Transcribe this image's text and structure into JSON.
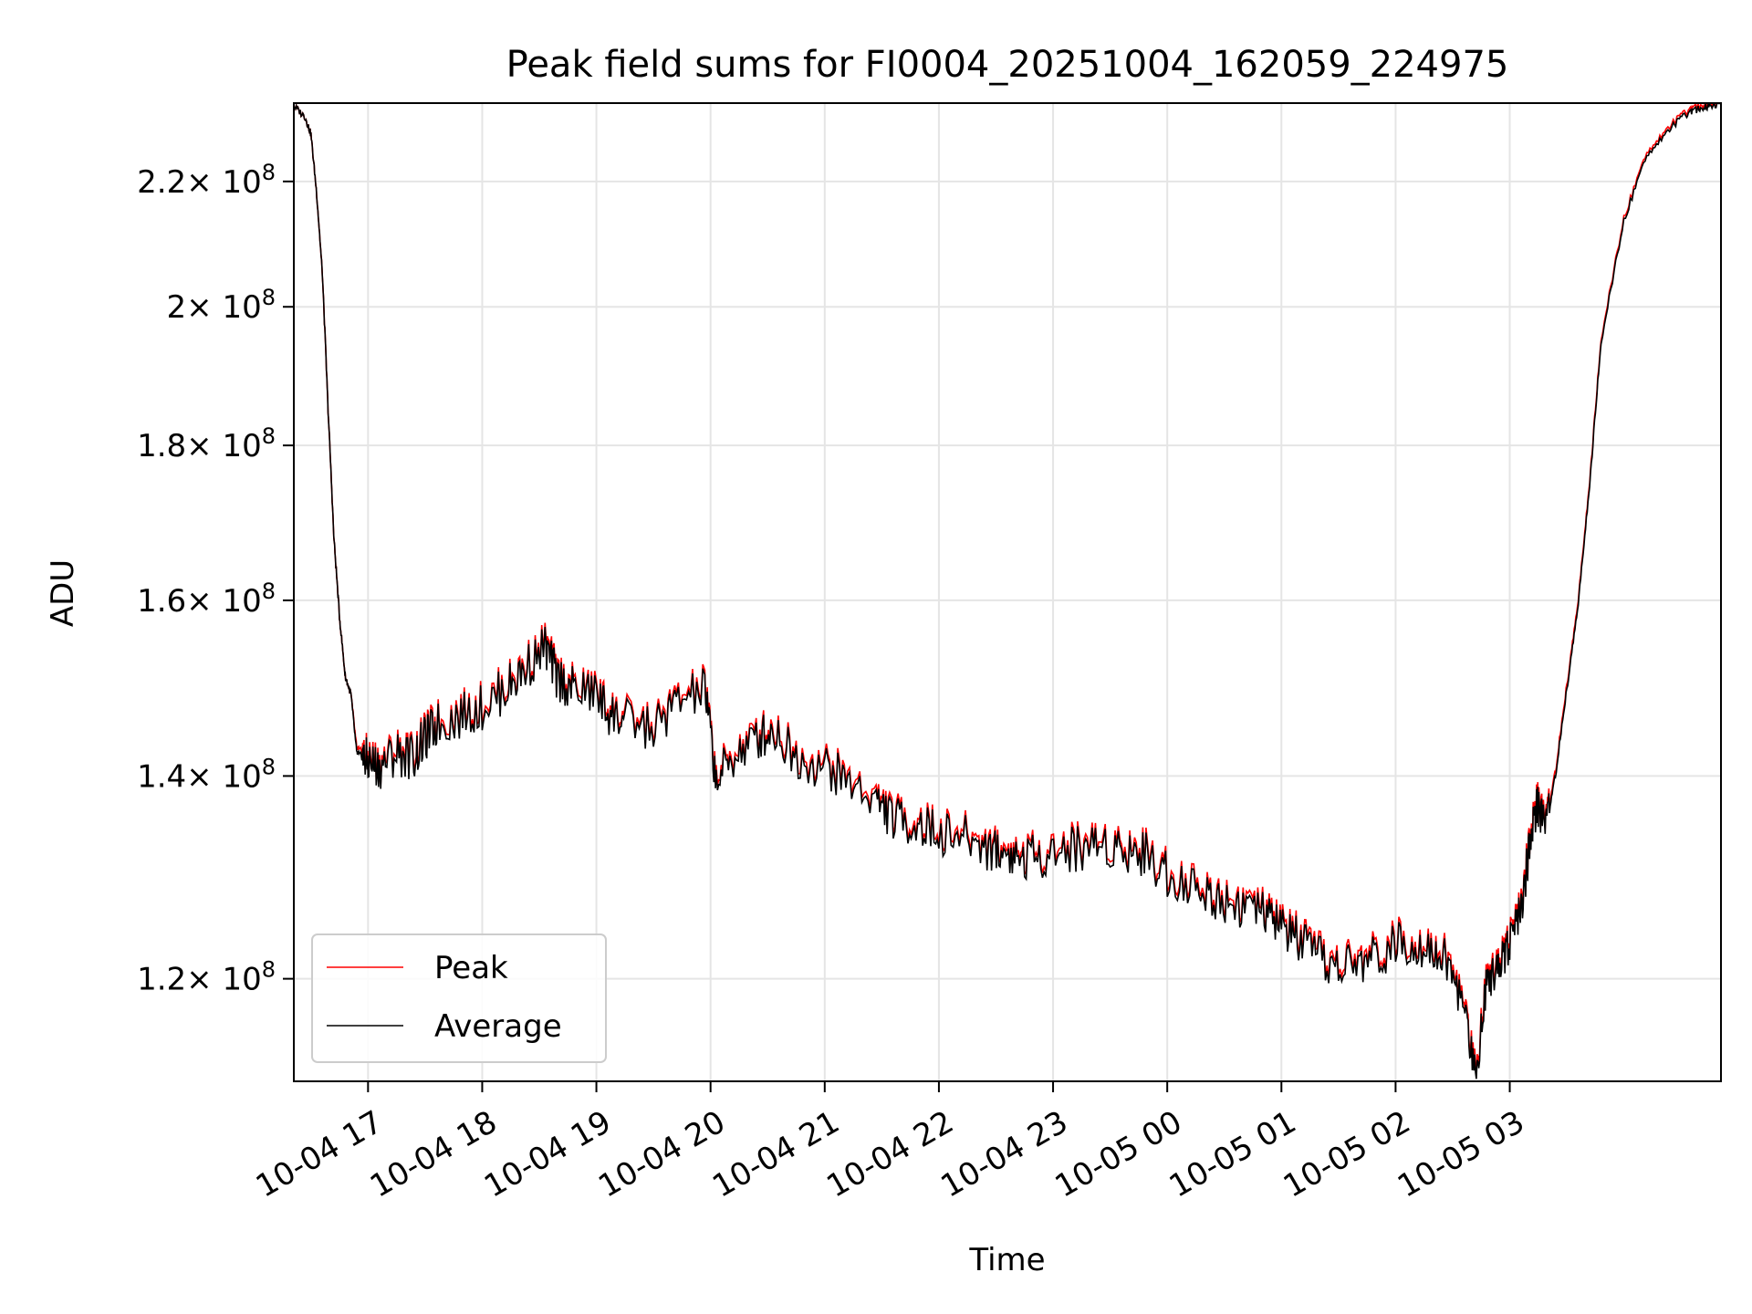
{
  "chart_data": {
    "type": "line",
    "title": "Peak field sums for FI0004_20251004_162059_224975",
    "xlabel": "Time",
    "ylabel": "ADU",
    "y_scale": "log",
    "ylim": [
      111000000,
      233500000
    ],
    "xlim_hours": [
      16.35,
      28.85
    ],
    "x_ticks": [
      {
        "value": 17,
        "label": "10-04 17"
      },
      {
        "value": 18,
        "label": "10-04 18"
      },
      {
        "value": 19,
        "label": "10-04 19"
      },
      {
        "value": 20,
        "label": "10-04 20"
      },
      {
        "value": 21,
        "label": "10-04 21"
      },
      {
        "value": 22,
        "label": "10-04 22"
      },
      {
        "value": 23,
        "label": "10-04 23"
      },
      {
        "value": 24,
        "label": "10-05 00"
      },
      {
        "value": 25,
        "label": "10-05 01"
      },
      {
        "value": 26,
        "label": "10-05 02"
      },
      {
        "value": 27,
        "label": "10-05 03"
      }
    ],
    "y_ticks": [
      {
        "value": 120000000,
        "mantissa": "1.2",
        "exponent": "8"
      },
      {
        "value": 140000000,
        "mantissa": "1.4",
        "exponent": "8"
      },
      {
        "value": 160000000,
        "mantissa": "1.6",
        "exponent": "8"
      },
      {
        "value": 180000000,
        "mantissa": "1.8",
        "exponent": "8"
      },
      {
        "value": 200000000,
        "mantissa": "2",
        "exponent": "8"
      },
      {
        "value": 220000000,
        "mantissa": "2.2",
        "exponent": "8"
      }
    ],
    "tick_times": "× 10",
    "grid": true,
    "legend_position": "lower-left",
    "series": [
      {
        "name": "Peak",
        "color": "#ff0000",
        "x_hours": [
          16.35,
          16.45,
          16.5,
          16.55,
          16.6,
          16.65,
          16.7,
          16.75,
          16.8,
          16.85,
          16.9,
          16.95,
          17.0,
          17.1,
          17.25,
          17.4,
          17.5,
          17.6,
          17.8,
          18.0,
          18.2,
          18.35,
          18.55,
          18.65,
          18.8,
          19.0,
          19.1,
          19.25,
          19.5,
          19.7,
          19.95,
          20.05,
          20.2,
          20.4,
          20.55,
          20.75,
          21.0,
          21.2,
          21.45,
          21.6,
          21.8,
          22.0,
          22.25,
          22.45,
          22.6,
          22.75,
          22.95,
          23.2,
          23.4,
          23.6,
          23.8,
          24.0,
          24.25,
          24.45,
          24.65,
          24.85,
          25.0,
          25.15,
          25.3,
          25.5,
          25.7,
          25.9,
          26.1,
          26.3,
          26.45,
          26.6,
          26.7,
          26.8,
          26.9,
          27.0,
          27.1,
          27.18,
          27.25,
          27.32,
          27.4,
          27.5,
          27.6,
          27.7,
          27.8,
          28.0,
          28.2,
          28.4,
          28.55,
          28.65,
          28.75,
          28.85
        ],
        "values": [
          233000000,
          231000000,
          228000000,
          218000000,
          205000000,
          185000000,
          168000000,
          158000000,
          151000000,
          149000000,
          143000000,
          142500000,
          142000000,
          141500000,
          143000000,
          142500000,
          144500000,
          146000000,
          147000000,
          148000000,
          150000000,
          152000000,
          155000000,
          151500000,
          150000000,
          149500000,
          147500000,
          146500000,
          145500000,
          148500000,
          150000000,
          140000000,
          142500000,
          144500000,
          145500000,
          142500000,
          141500000,
          140000000,
          138000000,
          136000000,
          135500000,
          134500000,
          134000000,
          133000000,
          132500000,
          132000000,
          132500000,
          133000000,
          133500000,
          133000000,
          132500000,
          130500000,
          129000000,
          128000000,
          127500000,
          126500000,
          125500000,
          124000000,
          122500000,
          121500000,
          122000000,
          123000000,
          124000000,
          123500000,
          122000000,
          118000000,
          112000000,
          120500000,
          122000000,
          124000000,
          126500000,
          134000000,
          137500000,
          135500000,
          140500000,
          150000000,
          160000000,
          175000000,
          195000000,
          214000000,
          225000000,
          229500000,
          232000000,
          233000000,
          233500000,
          233500000
        ]
      },
      {
        "name": "Average",
        "color": "#000000",
        "x_hours": [
          16.35,
          16.45,
          16.5,
          16.55,
          16.6,
          16.65,
          16.7,
          16.75,
          16.8,
          16.85,
          16.9,
          16.95,
          17.0,
          17.1,
          17.25,
          17.4,
          17.5,
          17.6,
          17.8,
          18.0,
          18.2,
          18.35,
          18.55,
          18.65,
          18.8,
          19.0,
          19.1,
          19.25,
          19.5,
          19.7,
          19.95,
          20.05,
          20.2,
          20.4,
          20.55,
          20.75,
          21.0,
          21.2,
          21.45,
          21.6,
          21.8,
          22.0,
          22.25,
          22.45,
          22.6,
          22.75,
          22.95,
          23.2,
          23.4,
          23.6,
          23.8,
          24.0,
          24.25,
          24.45,
          24.65,
          24.85,
          25.0,
          25.15,
          25.3,
          25.5,
          25.7,
          25.9,
          26.1,
          26.3,
          26.45,
          26.6,
          26.7,
          26.8,
          26.9,
          27.0,
          27.1,
          27.18,
          27.25,
          27.32,
          27.4,
          27.5,
          27.6,
          27.7,
          27.8,
          28.0,
          28.2,
          28.4,
          28.55,
          28.65,
          28.75,
          28.85
        ],
        "values": [
          233000000,
          231000000,
          228000000,
          218000000,
          205000000,
          185000000,
          168000000,
          158000000,
          151000000,
          149000000,
          142500000,
          142000000,
          141500000,
          141000000,
          142500000,
          142000000,
          144000000,
          145500000,
          146500000,
          147500000,
          149500000,
          151500000,
          154500000,
          151000000,
          149500000,
          149000000,
          147000000,
          146000000,
          145000000,
          148000000,
          149500000,
          139500000,
          142000000,
          144000000,
          145000000,
          142000000,
          141000000,
          139500000,
          137500000,
          135500000,
          135000000,
          134000000,
          133500000,
          132500000,
          132000000,
          131500000,
          132000000,
          132500000,
          133000000,
          132500000,
          132000000,
          130000000,
          128500000,
          127500000,
          127000000,
          126000000,
          125000000,
          123500000,
          122000000,
          121000000,
          121500000,
          122500000,
          123500000,
          123000000,
          121500000,
          117500000,
          111500000,
          120000000,
          121500000,
          123500000,
          126000000,
          133500000,
          137000000,
          135000000,
          140000000,
          149500000,
          159500000,
          174500000,
          194500000,
          213500000,
          224500000,
          229000000,
          231500000,
          232500000,
          233000000,
          233500000
        ]
      }
    ]
  }
}
